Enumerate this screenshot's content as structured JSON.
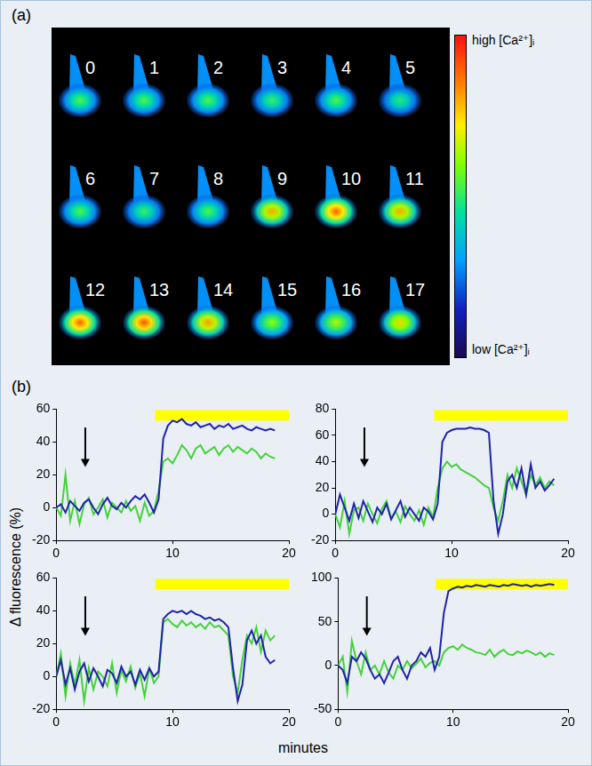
{
  "panel_a": {
    "label": "(a)",
    "frames": [
      {
        "label": "0",
        "level": 0.55
      },
      {
        "label": "1",
        "level": 0.55
      },
      {
        "label": "2",
        "level": 0.55
      },
      {
        "label": "3",
        "level": 0.52
      },
      {
        "label": "4",
        "level": 0.55
      },
      {
        "label": "5",
        "level": 0.5
      },
      {
        "label": "6",
        "level": 0.55
      },
      {
        "label": "7",
        "level": 0.52
      },
      {
        "label": "8",
        "level": 0.55
      },
      {
        "label": "9",
        "level": 0.8
      },
      {
        "label": "10",
        "level": 0.9
      },
      {
        "label": "11",
        "level": 0.8
      },
      {
        "label": "12",
        "level": 0.9
      },
      {
        "label": "13",
        "level": 0.92
      },
      {
        "label": "14",
        "level": 0.82
      },
      {
        "label": "15",
        "level": 0.62
      },
      {
        "label": "16",
        "level": 0.65
      },
      {
        "label": "17",
        "level": 0.75
      }
    ],
    "colorbar": {
      "high_label": "high [Ca²⁺]ᵢ",
      "low_label": "low [Ca²⁺]ᵢ"
    }
  },
  "panel_b": {
    "label": "(b)",
    "y_label": "Δ fluorescence (%)",
    "x_label": "minutes"
  },
  "chart_data": [
    {
      "type": "line",
      "grid": false,
      "x": [
        0,
        0.4,
        0.8,
        1.2,
        1.6,
        2.0,
        2.4,
        2.8,
        3.2,
        3.6,
        4.0,
        4.4,
        4.8,
        5.2,
        5.6,
        6.0,
        6.4,
        6.8,
        7.2,
        7.6,
        8.0,
        8.4,
        8.8,
        9.2,
        9.6,
        10.0,
        10.4,
        10.8,
        11.2,
        11.6,
        12.0,
        12.4,
        12.8,
        13.2,
        13.6,
        14.0,
        14.4,
        14.8,
        15.2,
        15.6,
        16.0,
        16.4,
        16.8,
        17.2,
        17.6,
        18.0,
        18.4,
        18.8
      ],
      "xlim": [
        0,
        20
      ],
      "xticks": [
        0,
        10,
        20
      ],
      "ylim": [
        -20,
        60
      ],
      "yticks": [
        -20,
        0,
        20,
        40,
        60
      ],
      "arrow_x": 2.5,
      "bar_x": [
        8.5,
        20
      ],
      "series": [
        {
          "color": "#1f22a8",
          "values": [
            0,
            2,
            -3,
            4,
            1,
            -2,
            3,
            5,
            0,
            -4,
            2,
            6,
            1,
            -1,
            3,
            0,
            4,
            7,
            5,
            8,
            3,
            -3,
            5,
            42,
            50,
            53,
            52,
            54,
            51,
            50,
            52,
            49,
            50,
            51,
            48,
            50,
            49,
            51,
            48,
            49,
            50,
            48,
            47,
            49,
            48,
            47,
            48,
            47
          ]
        },
        {
          "color": "#44d23a",
          "values": [
            0,
            -5,
            20,
            -8,
            4,
            -10,
            2,
            6,
            -4,
            0,
            5,
            -6,
            3,
            0,
            -3,
            4,
            -2,
            1,
            -8,
            3,
            -5,
            -2,
            10,
            28,
            30,
            27,
            32,
            38,
            35,
            30,
            36,
            38,
            33,
            35,
            37,
            32,
            36,
            38,
            34,
            37,
            35,
            33,
            36,
            34,
            30,
            33,
            31,
            30
          ]
        }
      ]
    },
    {
      "type": "line",
      "grid": false,
      "x": [
        0,
        0.4,
        0.8,
        1.2,
        1.6,
        2.0,
        2.4,
        2.8,
        3.2,
        3.6,
        4.0,
        4.4,
        4.8,
        5.2,
        5.6,
        6.0,
        6.4,
        6.8,
        7.2,
        7.6,
        8.0,
        8.4,
        8.8,
        9.2,
        9.6,
        10.0,
        10.4,
        10.8,
        11.2,
        11.6,
        12.0,
        12.4,
        12.8,
        13.2,
        13.6,
        14.0,
        14.4,
        14.8,
        15.2,
        15.6,
        16.0,
        16.4,
        16.8,
        17.2,
        17.6,
        18.0,
        18.4,
        18.8
      ],
      "xlim": [
        0,
        20
      ],
      "xticks": [
        0,
        10,
        20
      ],
      "ylim": [
        -20,
        80
      ],
      "yticks": [
        -20,
        0,
        20,
        40,
        60,
        80
      ],
      "arrow_x": 2.5,
      "bar_x": [
        8.5,
        20
      ],
      "series": [
        {
          "color": "#1f22a8",
          "values": [
            0,
            15,
            5,
            -5,
            8,
            -3,
            10,
            2,
            -6,
            5,
            0,
            8,
            -4,
            3,
            10,
            -2,
            5,
            0,
            -5,
            5,
            2,
            -4,
            8,
            55,
            62,
            64,
            65,
            65,
            65,
            66,
            65,
            65,
            64,
            62,
            10,
            -15,
            0,
            25,
            30,
            20,
            35,
            15,
            38,
            20,
            25,
            18,
            22,
            27
          ]
        },
        {
          "color": "#44d23a",
          "values": [
            0,
            -10,
            10,
            -15,
            3,
            5,
            -5,
            8,
            0,
            -7,
            4,
            10,
            -3,
            2,
            -6,
            6,
            0,
            -5,
            3,
            -8,
            5,
            -2,
            20,
            35,
            40,
            36,
            38,
            34,
            32,
            30,
            28,
            25,
            22,
            20,
            5,
            -5,
            10,
            30,
            20,
            35,
            25,
            15,
            30,
            22,
            28,
            20,
            25,
            22
          ]
        }
      ]
    },
    {
      "type": "line",
      "grid": false,
      "x": [
        0,
        0.4,
        0.8,
        1.2,
        1.6,
        2.0,
        2.4,
        2.8,
        3.2,
        3.6,
        4.0,
        4.4,
        4.8,
        5.2,
        5.6,
        6.0,
        6.4,
        6.8,
        7.2,
        7.6,
        8.0,
        8.4,
        8.8,
        9.2,
        9.6,
        10.0,
        10.4,
        10.8,
        11.2,
        11.6,
        12.0,
        12.4,
        12.8,
        13.2,
        13.6,
        14.0,
        14.4,
        14.8,
        15.2,
        15.6,
        16.0,
        16.4,
        16.8,
        17.2,
        17.6,
        18.0,
        18.4,
        18.8
      ],
      "xlim": [
        0,
        20
      ],
      "xticks": [
        0,
        10,
        20
      ],
      "ylim": [
        -20,
        60
      ],
      "yticks": [
        -20,
        0,
        20,
        40,
        60
      ],
      "arrow_x": 2.5,
      "bar_x": [
        8.5,
        20
      ],
      "series": [
        {
          "color": "#1f22a8",
          "values": [
            0,
            10,
            -5,
            5,
            -8,
            3,
            8,
            -3,
            5,
            0,
            -6,
            4,
            2,
            -4,
            6,
            0,
            3,
            -5,
            4,
            -2,
            5,
            0,
            3,
            35,
            38,
            40,
            39,
            40,
            38,
            40,
            38,
            37,
            35,
            36,
            34,
            35,
            33,
            30,
            5,
            -15,
            -5,
            22,
            28,
            20,
            25,
            12,
            8,
            10
          ]
        },
        {
          "color": "#44d23a",
          "values": [
            0,
            14,
            -12,
            8,
            -5,
            10,
            -15,
            5,
            -8,
            3,
            0,
            -6,
            8,
            -10,
            4,
            -3,
            6,
            -7,
            2,
            -12,
            5,
            -4,
            0,
            33,
            35,
            32,
            30,
            34,
            31,
            33,
            30,
            32,
            29,
            33,
            30,
            31,
            28,
            25,
            0,
            -10,
            10,
            25,
            20,
            30,
            15,
            28,
            22,
            25
          ]
        }
      ]
    },
    {
      "type": "line",
      "grid": false,
      "x": [
        0,
        0.4,
        0.8,
        1.2,
        1.6,
        2.0,
        2.4,
        2.8,
        3.2,
        3.6,
        4.0,
        4.4,
        4.8,
        5.2,
        5.6,
        6.0,
        6.4,
        6.8,
        7.2,
        7.6,
        8.0,
        8.4,
        8.8,
        9.2,
        9.6,
        10.0,
        10.4,
        10.8,
        11.2,
        11.6,
        12.0,
        12.4,
        12.8,
        13.2,
        13.6,
        14.0,
        14.4,
        14.8,
        15.2,
        15.6,
        16.0,
        16.4,
        16.8,
        17.2,
        17.6,
        18.0,
        18.4,
        18.8
      ],
      "xlim": [
        0,
        20
      ],
      "xticks": [
        0,
        10,
        20
      ],
      "ylim": [
        -50,
        100
      ],
      "yticks": [
        -50,
        0,
        50,
        100
      ],
      "arrow_x": 2.5,
      "bar_x": [
        8.5,
        20
      ],
      "series": [
        {
          "color": "#1f22a8",
          "values": [
            0,
            -5,
            -20,
            10,
            5,
            15,
            8,
            -5,
            -15,
            -10,
            -20,
            -8,
            5,
            10,
            -5,
            -15,
            0,
            5,
            15,
            10,
            20,
            -5,
            10,
            60,
            85,
            88,
            90,
            89,
            91,
            90,
            92,
            91,
            90,
            92,
            91,
            90,
            92,
            91,
            93,
            92,
            91,
            92,
            90,
            92,
            91,
            92,
            93,
            92
          ]
        },
        {
          "color": "#44d23a",
          "values": [
            0,
            10,
            -30,
            28,
            5,
            -10,
            15,
            -5,
            0,
            -10,
            5,
            -8,
            -15,
            0,
            -5,
            5,
            -3,
            2,
            8,
            -2,
            3,
            5,
            0,
            15,
            20,
            22,
            18,
            24,
            20,
            18,
            15,
            14,
            12,
            18,
            10,
            15,
            18,
            13,
            12,
            16,
            14,
            17,
            15,
            12,
            15,
            10,
            14,
            12
          ]
        }
      ]
    }
  ]
}
